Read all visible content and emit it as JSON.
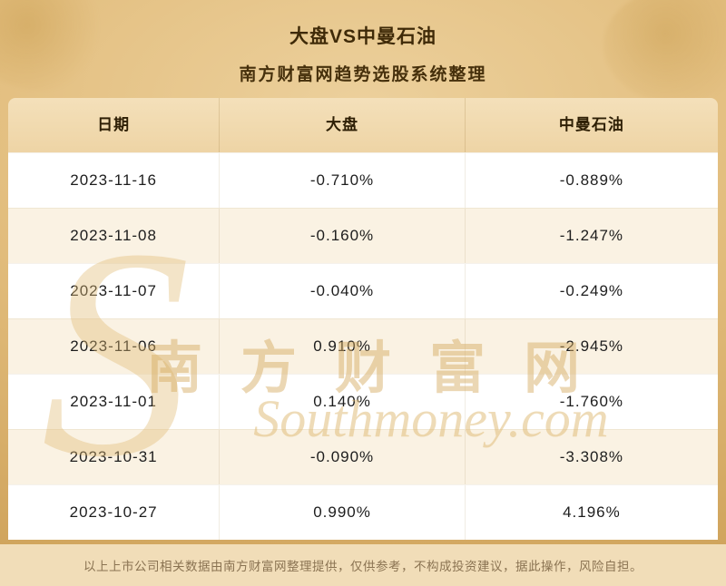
{
  "banner": {
    "title": "大盘VS中曼石油",
    "subtitle": "南方财富网趋势选股系统整理"
  },
  "table": {
    "headers": [
      "日期",
      "大盘",
      "中曼石油"
    ],
    "rows": [
      {
        "date": "2023-11-16",
        "market": "-0.710%",
        "stock": "-0.889%"
      },
      {
        "date": "2023-11-08",
        "market": "-0.160%",
        "stock": "-1.247%"
      },
      {
        "date": "2023-11-07",
        "market": "-0.040%",
        "stock": "-0.249%"
      },
      {
        "date": "2023-11-06",
        "market": "0.910%",
        "stock": "-2.945%"
      },
      {
        "date": "2023-11-01",
        "market": "0.140%",
        "stock": "-1.760%"
      },
      {
        "date": "2023-10-31",
        "market": "-0.090%",
        "stock": "-3.308%"
      },
      {
        "date": "2023-10-27",
        "market": "0.990%",
        "stock": "4.196%"
      }
    ]
  },
  "footer": {
    "disclaimer": "以上上市公司相关数据由南方财富网整理提供，仅供参考，不构成投资建议，据此操作，风险自担。"
  },
  "watermark": {
    "initial": "S",
    "cn": "南方财富网",
    "en": "Southmoney.com"
  },
  "colors": {
    "banner_gold": "#e2bd7d",
    "header_tan": "#f2dcb0",
    "row_alt": "#faf2e3",
    "footer_beige": "#f1ddb8",
    "title_text": "#3f2a08",
    "watermark_gold": "#d5ac62"
  },
  "chart_data": {
    "type": "table",
    "title": "大盘VS中曼石油",
    "subtitle": "南方财富网趋势选股系统整理",
    "columns": [
      "日期",
      "大盘",
      "中曼石油"
    ],
    "rows": [
      [
        "2023-11-16",
        "-0.710%",
        "-0.889%"
      ],
      [
        "2023-11-08",
        "-0.160%",
        "-1.247%"
      ],
      [
        "2023-11-07",
        "-0.040%",
        "-0.249%"
      ],
      [
        "2023-11-06",
        "0.910%",
        "-2.945%"
      ],
      [
        "2023-11-01",
        "0.140%",
        "-1.760%"
      ],
      [
        "2023-10-31",
        "-0.090%",
        "-3.308%"
      ],
      [
        "2023-10-27",
        "0.990%",
        "4.196%"
      ]
    ]
  }
}
